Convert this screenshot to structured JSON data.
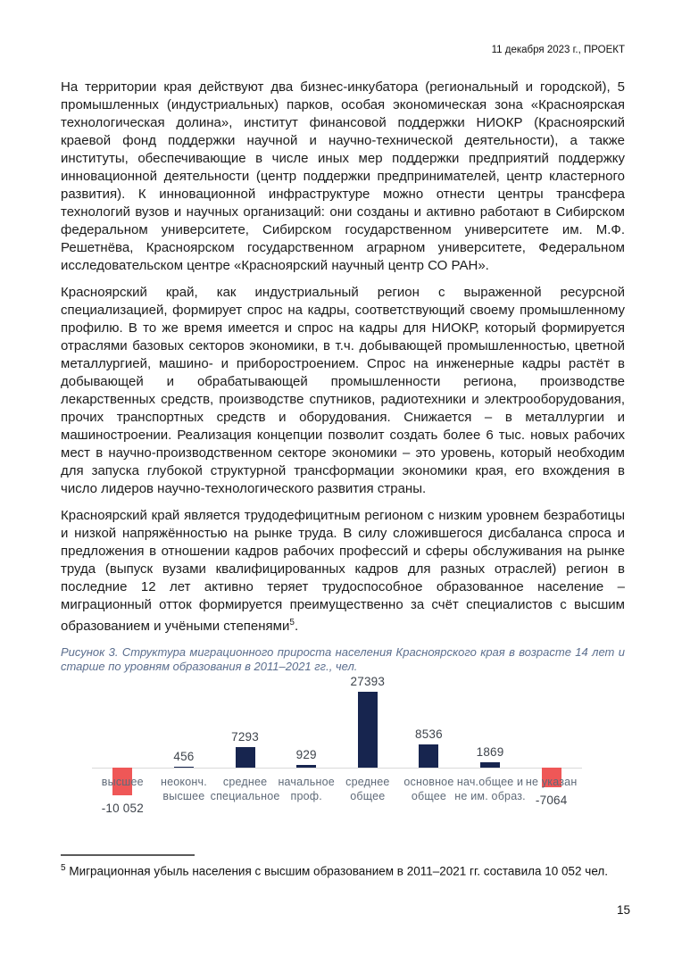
{
  "header": {
    "date_line": "11 декабря 2023 г., ПРОЕКТ"
  },
  "body": {
    "p1": "На территории края действуют два бизнес-инкубатора (региональный и городской), 5 промышленных (индустриальных) парков, особая экономическая зона «Красноярская технологическая долина», институт финансовой поддержки НИОКР (Красноярский краевой фонд поддержки научной и научно-технической деятельности), а также институты, обеспечивающие в числе иных мер поддержки предприятий поддержку инновационной деятельности (центр поддержки предпринимателей, центр кластерного развития). К инновационной инфраструктуре можно отнести центры трансфера технологий вузов и научных организаций: они созданы и активно работают в Сибирском федеральном университете, Сибирском государственном университете им. М.Ф. Решетнёва, Красноярском государственном аграрном университете, Федеральном исследовательском центре «Красноярский научный центр СО РАН».",
    "p2": "Красноярский край, как индустриальный регион с выраженной ресурсной специализацией, формирует спрос на кадры, соответствующий своему промышленному профилю. В то же время имеется и спрос на кадры для НИОКР, который формируется отраслями базовых секторов экономики, в т.ч. добывающей промышленностью, цветной металлургией, машино- и приборостроением. Спрос на инженерные кадры растёт в добывающей и обрабатывающей промышленности региона, производстве лекарственных средств, производстве спутников, радиотехники и электрооборудования, прочих транспортных средств и оборудования. Снижается – в металлургии и машиностроении. Реализация концепции позволит создать более 6 тыс. новых рабочих мест в научно-производственном секторе экономики – это уровень, который необходим для запуска глубокой структурной трансформации экономики края, его вхождения в число лидеров научно-технологического развития страны.",
    "p3_text": "Красноярский край является трудодефицитным регионом с низким уровнем безработицы и низкой напряжённостью на рынке труда. В силу сложившегося дисбаланса спроса и предложения в отношении кадров рабочих профессий и сферы обслуживания на рынке труда (выпуск вузами квалифицированных кадров для разных отраслей) регион в последние 12 лет активно теряет трудоспособное образованное население – миграционный отток формируется преимущественно за счёт специалистов с высшим образованием и учёными степенями",
    "p3_ref": "5",
    "p3_tail": "."
  },
  "chart_data": {
    "type": "bar",
    "title": "Рисунок 3. Структура миграционного прироста населения Красноярского края в возрасте 14 лет и старше по уровням образования в 2011–2021 гг., чел.",
    "units": "чел.",
    "categories": [
      "высшее",
      "неоконч. высшее",
      "среднее специальное",
      "начальное проф.",
      "среднее общее",
      "основное общее",
      "нач.общее и не им. образ.",
      "не указан"
    ],
    "category_lines": [
      [
        "высшее"
      ],
      [
        "неоконч.",
        "высшее"
      ],
      [
        "среднее",
        "специальное"
      ],
      [
        "начальное",
        "проф."
      ],
      [
        "среднее",
        "общее"
      ],
      [
        "основное",
        "общее"
      ],
      [
        "нач.общее и",
        "не им. образ."
      ],
      [
        "не указан"
      ]
    ],
    "values": [
      -10052,
      456,
      7293,
      929,
      27393,
      8536,
      1869,
      -7064
    ],
    "value_labels": [
      "-10 052",
      "456",
      "7293",
      "929",
      "27393",
      "8536",
      "1869",
      "-7064"
    ],
    "baseline": 0,
    "ylim": [
      -11000,
      28000
    ],
    "grid": false,
    "legend": false,
    "colors": {
      "positive": "#17254f",
      "negative": "#ef5757",
      "axis": "#d9d9d9",
      "category_label": "#5f6a78",
      "value_label": "#3e444c"
    }
  },
  "figure": {
    "caption_color": "#5b6e8e"
  },
  "footnote": {
    "marker": "5",
    "text": "Миграционная убыль населения с высшим образованием в 2011–2021 гг. составила 10 052 чел."
  },
  "page": {
    "number": "15"
  }
}
